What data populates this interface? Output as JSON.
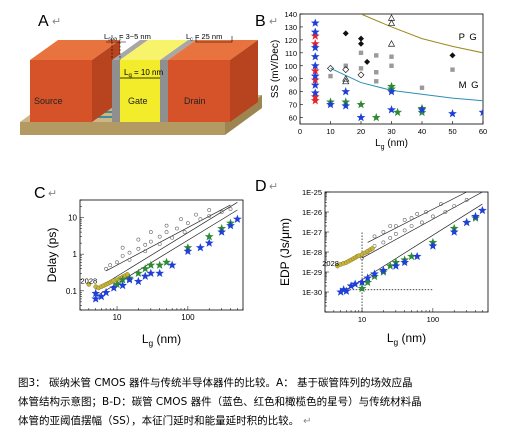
{
  "panel_labels": {
    "a": "A",
    "b": "B",
    "c": "C",
    "d": "D"
  },
  "return_mark": "↵",
  "schematic": {
    "source_label": "Source",
    "gate_label": "Gate",
    "drain_label": "Drain",
    "lg_label": "L",
    "lg_sub": "g",
    "lg_value": " = 10 nm",
    "lspa_label": "L",
    "lspa_sub": "spa",
    "lspa_value": " = 3~5 nm",
    "lc_label": "L",
    "lc_sub": "c",
    "lc_value": " = 25 nm"
  },
  "caption": {
    "line1": "图3：   碳纳米管 CMOS 器件与传统半导体器件的比较。A：  基于碳管阵列的场效应晶",
    "line2": "体管结构示意图；B-D：碳管 CMOS 器件（蓝色、红色和橄榄色的星号）与传统材料晶",
    "line3": "体管的亚阈值摆幅（SS），本征门延时和能量延时积的比较。"
  },
  "colors": {
    "blue": "#1f3fd8",
    "red": "#e8262a",
    "green": "#2f8a34",
    "olive": "#c8b43c",
    "pg_curve": "#9c8a1c",
    "mg_curve": "#2b8fb5",
    "source_top": "#e8602c",
    "source_front": "#d4502a",
    "gate_yellow": "#f5f03a",
    "substrate": "#bfa574",
    "gray": "#9a9a9a"
  },
  "chart_data": [
    {
      "panel": "B",
      "type": "scatter",
      "xlabel_main": "L",
      "xlabel_sub": "g",
      "xlabel_unit": " (nm)",
      "ylabel": "SS (mV/Dec)",
      "xlim": [
        0,
        60
      ],
      "ylim": [
        55,
        140
      ],
      "xticks": [
        0,
        10,
        20,
        30,
        40,
        50,
        60
      ],
      "yticks": [
        60,
        70,
        80,
        90,
        100,
        110,
        120,
        130,
        140
      ],
      "curve_labels": {
        "pg": "P G",
        "mg": "M G"
      },
      "pg_curve": [
        [
          20,
          140
        ],
        [
          30,
          130
        ],
        [
          40,
          121
        ],
        [
          50,
          115
        ],
        [
          60,
          110
        ]
      ],
      "mg_curve": [
        [
          10,
          98
        ],
        [
          20,
          87
        ],
        [
          30,
          81
        ],
        [
          40,
          78
        ],
        [
          50,
          75
        ],
        [
          60,
          73
        ]
      ],
      "series": [
        {
          "name": "blue",
          "symbol": "star",
          "points": [
            [
              5,
              133
            ],
            [
              5,
              126
            ],
            [
              5,
              114
            ],
            [
              5,
              107
            ],
            [
              5,
              100
            ],
            [
              5,
              92
            ],
            [
              5,
              85
            ],
            [
              5,
              79
            ],
            [
              10,
              70
            ],
            [
              15,
              69
            ],
            [
              15,
              80
            ],
            [
              20,
              60
            ],
            [
              30,
              80
            ],
            [
              30,
              66
            ],
            [
              40,
              66
            ],
            [
              50,
              63
            ],
            [
              60,
              64
            ]
          ]
        },
        {
          "name": "red",
          "symbol": "star",
          "points": [
            [
              5,
              123
            ],
            [
              5,
              117
            ],
            [
              5,
              96
            ],
            [
              5,
              89
            ],
            [
              5,
              76
            ],
            [
              5,
              73
            ]
          ]
        },
        {
          "name": "green",
          "symbol": "star",
          "points": [
            [
              10,
              72
            ],
            [
              15,
              72
            ],
            [
              20,
              70
            ],
            [
              25,
              60
            ],
            [
              30,
              84
            ],
            [
              30,
              82
            ],
            [
              32,
              64
            ],
            [
              40,
              64
            ],
            [
              40,
              67
            ]
          ]
        },
        {
          "name": "gray-square",
          "symbol": "square",
          "points": [
            [
              10,
              92
            ],
            [
              15,
              100
            ],
            [
              20,
              110
            ],
            [
              20,
              98
            ],
            [
              25,
              108
            ],
            [
              25,
              95
            ],
            [
              25,
              88
            ],
            [
              30,
              107
            ],
            [
              30,
              100
            ],
            [
              40,
              83
            ],
            [
              50,
              97
            ]
          ]
        },
        {
          "name": "black-diamond",
          "symbol": "diamond",
          "points": [
            [
              15,
              125
            ],
            [
              20,
              121
            ],
            [
              20,
              117
            ],
            [
              50,
              108
            ],
            [
              22,
              103
            ]
          ]
        },
        {
          "name": "open-triangle",
          "symbol": "triangle",
          "points": [
            [
              30,
              137
            ],
            [
              30,
              133
            ],
            [
              30,
              117
            ],
            [
              15,
              90
            ],
            [
              15,
              88
            ]
          ]
        },
        {
          "name": "open-diamond",
          "symbol": "open-diamond",
          "points": [
            [
              10,
              98
            ],
            [
              15,
              97
            ],
            [
              20,
              93
            ]
          ]
        }
      ]
    },
    {
      "panel": "C",
      "type": "scatter",
      "xscale": "log",
      "yscale": "log",
      "xlabel_main": "L",
      "xlabel_sub": "g",
      "xlabel_unit": " (nm)",
      "ylabel": "Delay (ps)",
      "xlim": [
        3,
        600
      ],
      "ylim": [
        0.03,
        30
      ],
      "xtick_labels": [
        {
          "v": 10,
          "t": "10"
        },
        {
          "v": 100,
          "t": "100"
        }
      ],
      "ytick_labels": [
        {
          "v": 0.1,
          "t": "0.1"
        },
        {
          "v": 1,
          "t": "1"
        },
        {
          "v": 10,
          "t": "10"
        }
      ],
      "annotation": {
        "text": "2028",
        "x": 4,
        "y": 0.16
      },
      "lines": [
        [
          [
            5,
            0.07
          ],
          [
            500,
            16
          ]
        ],
        [
          [
            5,
            0.11
          ],
          [
            500,
            26
          ]
        ],
        [
          [
            7,
            0.35
          ],
          [
            400,
            22
          ]
        ]
      ],
      "series": [
        {
          "name": "blue",
          "symbol": "star",
          "points": [
            [
              5,
              0.06
            ],
            [
              5,
              0.085
            ],
            [
              6,
              0.07
            ],
            [
              7,
              0.09
            ],
            [
              9,
              0.12
            ],
            [
              12,
              0.14
            ],
            [
              15,
              0.2
            ],
            [
              20,
              0.18
            ],
            [
              25,
              0.25
            ],
            [
              30,
              0.3
            ],
            [
              40,
              0.3
            ],
            [
              60,
              0.5
            ],
            [
              100,
              1.2
            ],
            [
              150,
              1.5
            ],
            [
              200,
              2
            ],
            [
              300,
              4
            ],
            [
              400,
              6
            ],
            [
              500,
              9
            ]
          ]
        },
        {
          "name": "green",
          "symbol": "star",
          "points": [
            [
              10,
              0.15
            ],
            [
              12,
              0.2
            ],
            [
              15,
              0.22
            ],
            [
              20,
              0.3
            ],
            [
              25,
              0.4
            ],
            [
              30,
              0.5
            ],
            [
              40,
              0.5
            ],
            [
              50,
              0.6
            ],
            [
              100,
              1.5
            ],
            [
              200,
              3
            ],
            [
              300,
              5
            ],
            [
              400,
              7
            ]
          ]
        },
        {
          "name": "olive",
          "symbol": "circle",
          "points": [
            [
              4,
              0.15
            ],
            [
              5,
              0.13
            ],
            [
              5.5,
              0.12
            ],
            [
              6,
              0.13
            ],
            [
              6.5,
              0.14
            ],
            [
              7,
              0.15
            ],
            [
              7.5,
              0.16
            ],
            [
              8,
              0.17
            ],
            [
              8.5,
              0.18
            ],
            [
              9,
              0.19
            ],
            [
              10,
              0.2
            ],
            [
              11,
              0.22
            ],
            [
              12,
              0.24
            ],
            [
              13,
              0.26
            ],
            [
              14,
              0.28
            ]
          ]
        },
        {
          "name": "open-gray",
          "symbol": "open-circle",
          "points": [
            [
              7,
              0.4
            ],
            [
              8,
              0.5
            ],
            [
              10,
              0.6
            ],
            [
              12,
              0.9
            ],
            [
              15,
              1.1
            ],
            [
              20,
              1.4
            ],
            [
              25,
              1.8
            ],
            [
              30,
              2.2
            ],
            [
              40,
              3
            ],
            [
              50,
              4
            ],
            [
              70,
              5
            ],
            [
              100,
              7
            ],
            [
              150,
              9
            ],
            [
              200,
              11
            ],
            [
              300,
              14
            ],
            [
              400,
              17
            ],
            [
              12,
              1.5
            ],
            [
              20,
              2.5
            ],
            [
              30,
              4
            ],
            [
              50,
              6
            ],
            [
              80,
              9
            ],
            [
              130,
              12
            ],
            [
              200,
              16
            ],
            [
              15,
              0.7
            ],
            [
              25,
              1.2
            ],
            [
              40,
              1.9
            ],
            [
              60,
              2.8
            ],
            [
              90,
              4
            ]
          ]
        }
      ]
    },
    {
      "panel": "D",
      "type": "scatter",
      "xscale": "log",
      "yscale": "log",
      "xlabel_main": "L",
      "xlabel_sub": "g",
      "xlabel_unit": " (nm)",
      "ylabel": "EDP (Js/μm)",
      "xlim": [
        3,
        600
      ],
      "ylim": [
        1e-31,
        1e-25
      ],
      "xtick_labels": [
        {
          "v": 10,
          "t": "10"
        },
        {
          "v": 100,
          "t": "100"
        }
      ],
      "ytick_labels": [
        {
          "v": 1e-30,
          "t": "1E-30"
        },
        {
          "v": 1e-29,
          "t": "1E-29"
        },
        {
          "v": 1e-28,
          "t": "1E-28"
        },
        {
          "v": 1e-27,
          "t": "1E-27"
        },
        {
          "v": 1e-26,
          "t": "1E-26"
        },
        {
          "v": 1e-25,
          "t": "1E-25"
        }
      ],
      "annotation": {
        "text": "2028",
        "x": 3.6,
        "y": 2e-29
      },
      "guide_vertical_x": 10,
      "guide_horizontal_y": 1.3e-30,
      "guide_x_extent": [
        5,
        100
      ],
      "guide_y_extent": [
        1e-31,
        1e-27
      ],
      "lines": [
        [
          [
            6,
            1.3e-30
          ],
          [
            500,
            2.5e-26
          ]
        ],
        [
          [
            10,
            5e-29
          ],
          [
            500,
            1e-25
          ]
        ],
        [
          [
            12,
            3e-28
          ],
          [
            300,
            1e-25
          ]
        ]
      ],
      "series": [
        {
          "name": "blue",
          "symbol": "star",
          "points": [
            [
              5,
              1e-30
            ],
            [
              5.5,
              1.3e-30
            ],
            [
              6,
              1.1e-30
            ],
            [
              7,
              2e-30
            ],
            [
              8,
              2.5e-30
            ],
            [
              10,
              3e-30
            ],
            [
              12,
              5e-30
            ],
            [
              15,
              8e-30
            ],
            [
              20,
              1.2e-29
            ],
            [
              30,
              2e-29
            ],
            [
              40,
              3e-29
            ],
            [
              60,
              6e-29
            ],
            [
              100,
              2e-28
            ],
            [
              200,
              1e-27
            ],
            [
              300,
              3e-27
            ],
            [
              400,
              6e-27
            ],
            [
              500,
              1.2e-26
            ]
          ]
        },
        {
          "name": "green",
          "symbol": "star",
          "points": [
            [
              10,
              1.5e-30
            ],
            [
              12,
              3e-30
            ],
            [
              15,
              6e-30
            ],
            [
              20,
              1e-29
            ],
            [
              25,
              2e-29
            ],
            [
              30,
              3e-29
            ],
            [
              40,
              4e-29
            ],
            [
              50,
              6e-29
            ],
            [
              100,
              3e-28
            ],
            [
              200,
              1.5e-27
            ],
            [
              300,
              3e-27
            ],
            [
              400,
              5e-27
            ]
          ]
        },
        {
          "name": "olive",
          "symbol": "circle",
          "points": [
            [
              4.5,
              2e-29
            ],
            [
              5,
              2.4e-29
            ],
            [
              5.5,
              2.7e-29
            ],
            [
              6,
              3e-29
            ],
            [
              6.5,
              3.5e-29
            ],
            [
              7,
              4e-29
            ],
            [
              7.5,
              4.6e-29
            ],
            [
              8,
              5.2e-29
            ],
            [
              8.5,
              6e-29
            ],
            [
              9,
              6.5e-29
            ],
            [
              10,
              7.5e-29
            ],
            [
              11,
              9e-29
            ],
            [
              12,
              1.1e-28
            ],
            [
              13,
              1.3e-28
            ],
            [
              14,
              1.5e-28
            ]
          ]
        },
        {
          "name": "open-gray",
          "symbol": "open-circle",
          "points": [
            [
              10,
              5e-29
            ],
            [
              12,
              1e-28
            ],
            [
              15,
              2e-28
            ],
            [
              20,
              3e-28
            ],
            [
              25,
              5e-28
            ],
            [
              30,
              8e-28
            ],
            [
              40,
              1.2e-27
            ],
            [
              50,
              2e-27
            ],
            [
              70,
              3e-27
            ],
            [
              100,
              6e-27
            ],
            [
              150,
              1e-26
            ],
            [
              200,
              2e-26
            ],
            [
              300,
              4e-26
            ],
            [
              15,
              6e-28
            ],
            [
              20,
              1e-27
            ],
            [
              30,
              2e-27
            ],
            [
              50,
              5e-27
            ],
            [
              80,
              1e-26
            ],
            [
              130,
              2.5e-26
            ],
            [
              25,
              2e-27
            ],
            [
              40,
              4e-27
            ],
            [
              60,
              8e-27
            ]
          ]
        }
      ]
    }
  ]
}
